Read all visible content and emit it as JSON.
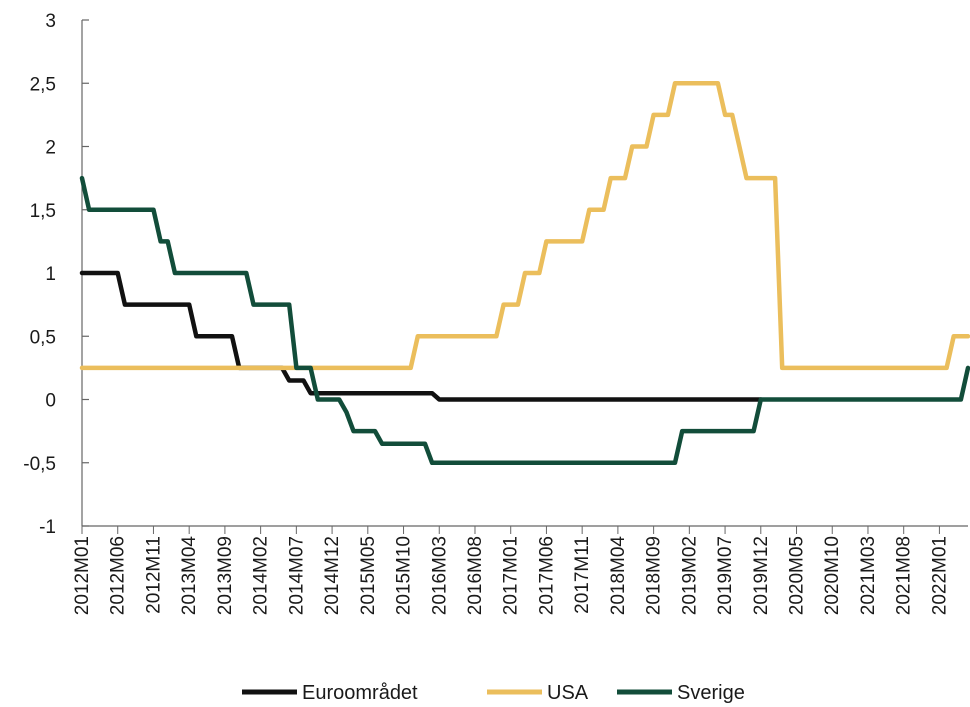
{
  "chart_data": {
    "type": "line",
    "ylim": [
      -1,
      3
    ],
    "yticks": [
      -1,
      -0.5,
      0,
      0.5,
      1,
      1.5,
      2,
      2.5,
      3
    ],
    "ytick_labels": [
      "-1",
      "-0,5",
      "0",
      "0,5",
      "1",
      "1,5",
      "2",
      "2,5",
      "3"
    ],
    "xtick_labels": [
      "2012M01",
      "2012M06",
      "2012M11",
      "2013M04",
      "2013M09",
      "2014M02",
      "2014M07",
      "2014M12",
      "2015M05",
      "2015M10",
      "2016M03",
      "2016M08",
      "2017M01",
      "2017M06",
      "2017M11",
      "2018M04",
      "2018M09",
      "2019M02",
      "2019M07",
      "2019M12",
      "2020M05",
      "2020M10",
      "2021M03",
      "2021M08",
      "2022M01"
    ],
    "grid": false,
    "legend_position": "bottom",
    "series": [
      {
        "name": "Euroområdet",
        "color": "#111111",
        "steps": [
          [
            "2012M01",
            1.0
          ],
          [
            "2012M07",
            0.75
          ],
          [
            "2013M05",
            0.5
          ],
          [
            "2013M11",
            0.25
          ],
          [
            "2014M06",
            0.15
          ],
          [
            "2014M09",
            0.05
          ],
          [
            "2016M03",
            0.0
          ],
          [
            "2019M12",
            0.0
          ]
        ]
      },
      {
        "name": "USA",
        "color": "#EBBE5C",
        "steps": [
          [
            "2012M01",
            0.25
          ],
          [
            "2015M12",
            0.5
          ],
          [
            "2016M12",
            0.75
          ],
          [
            "2017M03",
            1.0
          ],
          [
            "2017M06",
            1.25
          ],
          [
            "2017M12",
            1.5
          ],
          [
            "2018M03",
            1.75
          ],
          [
            "2018M06",
            2.0
          ],
          [
            "2018M09",
            2.25
          ],
          [
            "2018M12",
            2.5
          ],
          [
            "2019M07",
            2.25
          ],
          [
            "2019M09",
            2.0
          ],
          [
            "2019M10",
            1.75
          ],
          [
            "2020M03",
            0.25
          ],
          [
            "2022M03",
            0.5
          ],
          [
            "2022M05",
            0.5
          ]
        ]
      },
      {
        "name": "Sverige",
        "color": "#124D3A",
        "steps": [
          [
            "2012M01",
            1.75
          ],
          [
            "2012M02",
            1.5
          ],
          [
            "2012M12",
            1.25
          ],
          [
            "2013M02",
            1.0
          ],
          [
            "2014M01",
            0.75
          ],
          [
            "2014M07",
            0.25
          ],
          [
            "2014M10",
            0.0
          ],
          [
            "2015M02",
            -0.1
          ],
          [
            "2015M03",
            -0.25
          ],
          [
            "2015M07",
            -0.35
          ],
          [
            "2016M02",
            -0.5
          ],
          [
            "2019M01",
            -0.25
          ],
          [
            "2019M12",
            0.0
          ],
          [
            "2022M05",
            0.25
          ]
        ]
      }
    ]
  }
}
